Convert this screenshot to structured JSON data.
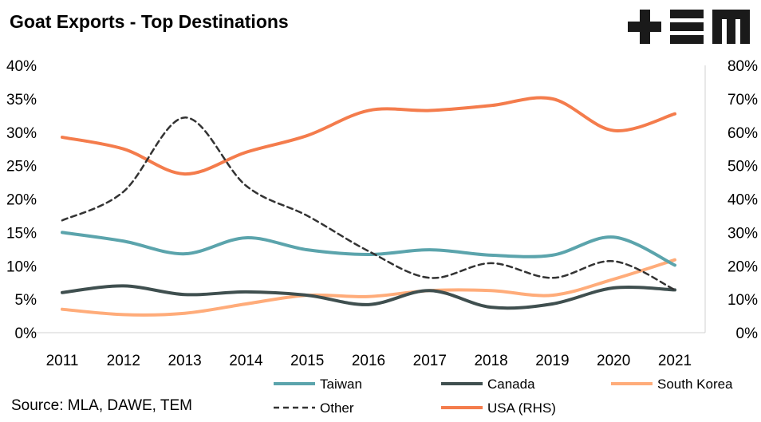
{
  "title": "Goat Exports - Top Destinations",
  "source": "Source: MLA, DAWE, TEM",
  "logo": {
    "text": "+EM",
    "color": "#1a1a1a"
  },
  "chart_data": {
    "type": "line",
    "title": "Goat Exports - Top Destinations",
    "categories": [
      "2011",
      "2012",
      "2013",
      "2014",
      "2015",
      "2016",
      "2017",
      "2018",
      "2019",
      "2020",
      "2021"
    ],
    "y_left": {
      "min": 0,
      "max": 40,
      "step": 5,
      "ticks": [
        "0%",
        "5%",
        "10%",
        "15%",
        "20%",
        "25%",
        "30%",
        "35%",
        "40%"
      ]
    },
    "y_right": {
      "min": 0,
      "max": 80,
      "step": 10,
      "ticks": [
        "0%",
        "10%",
        "20%",
        "30%",
        "40%",
        "50%",
        "60%",
        "70%",
        "80%"
      ]
    },
    "grid": false,
    "legend_position": "bottom",
    "series": [
      {
        "name": "Taiwan",
        "axis": "left",
        "color": "#5BA4AC",
        "dash": false,
        "values": [
          15.0,
          13.7,
          11.8,
          14.2,
          12.4,
          11.7,
          12.4,
          11.6,
          11.6,
          14.3,
          10.1
        ]
      },
      {
        "name": "Canada",
        "axis": "left",
        "color": "#3F4F4F",
        "dash": false,
        "values": [
          6.0,
          7.0,
          5.7,
          6.1,
          5.6,
          4.2,
          6.3,
          3.8,
          4.3,
          6.7,
          6.4
        ]
      },
      {
        "name": "South Korea",
        "axis": "left",
        "color": "#FFAC7A",
        "dash": false,
        "values": [
          3.5,
          2.7,
          2.9,
          4.3,
          5.6,
          5.4,
          6.3,
          6.3,
          5.6,
          8.0,
          10.9
        ]
      },
      {
        "name": "Other",
        "axis": "left",
        "color": "#333333",
        "dash": true,
        "values": [
          16.8,
          21.1,
          32.2,
          22.0,
          17.5,
          12.2,
          8.2,
          10.4,
          8.2,
          10.7,
          6.4
        ]
      },
      {
        "name": "USA (RHS)",
        "axis": "right",
        "color": "#F47C4C",
        "dash": false,
        "values": [
          58.5,
          55.0,
          47.5,
          54.0,
          59.0,
          66.5,
          66.5,
          68.0,
          70.0,
          60.5,
          65.5
        ]
      }
    ]
  }
}
